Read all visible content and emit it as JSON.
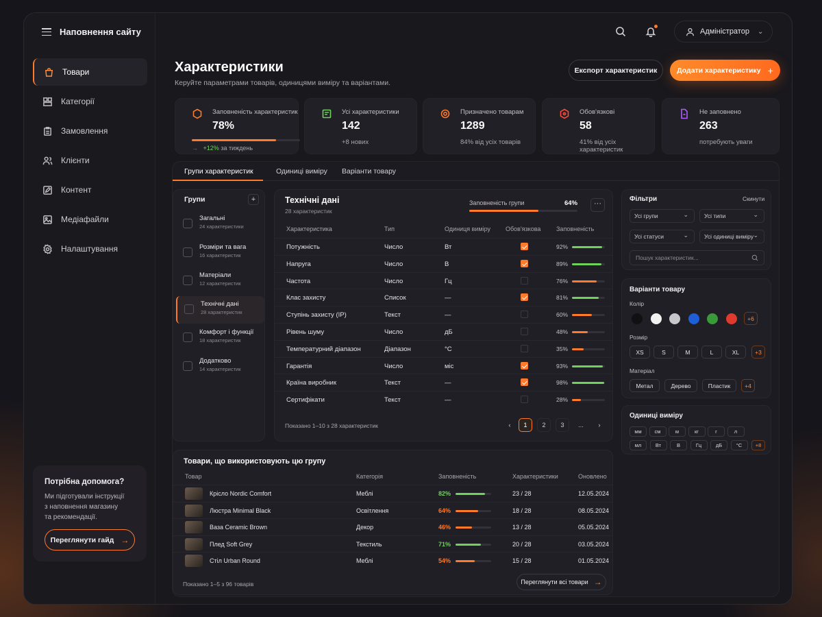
{
  "app": {
    "title": "Наповнення сайту"
  },
  "sidebar": {
    "items": [
      {
        "label": "Товари",
        "icon": "bag-icon",
        "active": true
      },
      {
        "label": "Категорії",
        "icon": "folder-icon"
      },
      {
        "label": "Замовлення",
        "icon": "clipboard-icon"
      },
      {
        "label": "Клієнти",
        "icon": "users-icon"
      },
      {
        "label": "Контент",
        "icon": "edit-icon"
      },
      {
        "label": "Медіафайли",
        "icon": "image-icon"
      },
      {
        "label": "Налаштування",
        "icon": "gear-icon"
      }
    ],
    "help": {
      "title": "Потрібна допомога?",
      "text_lines": [
        "Ми підготували інструкції",
        "з наповнення магазину",
        "та рекомендації."
      ],
      "button": "Переглянути гайд"
    }
  },
  "topbar": {
    "user": "Адміністратор"
  },
  "header": {
    "title": "Характеристики",
    "subtitle": "Керуйте параметрами товарів, одиницями виміру та варіантами.",
    "export_button": "Експорт характеристик",
    "add_button": "Додати характеристику"
  },
  "stats": [
    {
      "label": "Заповненість характеристик",
      "value": "78%",
      "progress": 0.78,
      "trend": "+12%",
      "trend_suffix": "за тиждень",
      "icon": "hexagon-icon",
      "color": "#ff7a2a"
    },
    {
      "label": "Усі характеристики",
      "value": "142",
      "note": "+8 нових",
      "icon": "list-icon",
      "color": "#6fd35a"
    },
    {
      "label": "Призначено товарам",
      "value": "1289",
      "note": "84% від усіх товарів",
      "icon": "gear-icon",
      "color": "#ff7a2a"
    },
    {
      "label": "Обов'язкові",
      "value": "58",
      "note": "41% від усіх характеристик",
      "icon": "shield-icon",
      "color": "#ff4a3a"
    },
    {
      "label": "Не заповнено",
      "value": "263",
      "note": "потребують уваги",
      "icon": "document-icon",
      "color": "#b05cff"
    }
  ],
  "tabs": [
    "Групи характеристик",
    "Одиниці виміру",
    "Варіанти товару"
  ],
  "groups": {
    "title": "Групи",
    "items": [
      {
        "name": "Загальні",
        "count": "24 характеристики"
      },
      {
        "name": "Розміри та вага",
        "count": "16 характеристик"
      },
      {
        "name": "Матеріали",
        "count": "12 характеристик"
      },
      {
        "name": "Технічні дані",
        "count": "28 характеристик",
        "active": true
      },
      {
        "name": "Комфорт і функції",
        "count": "18 характеристик"
      },
      {
        "name": "Додатково",
        "count": "14 характеристик"
      }
    ]
  },
  "group_table": {
    "title": "Технічні дані",
    "subtitle": "28 характеристик",
    "fill_label": "Заповненість групи",
    "fill_value": "64%",
    "fill": 0.64,
    "columns": [
      "Характеристика",
      "Тип",
      "Одиниця виміру",
      "Обов'язкова",
      "Заповненість"
    ],
    "rows": [
      {
        "name": "Потужність",
        "type": "Число",
        "unit": "Вт",
        "required": true,
        "fill": "92%",
        "pct": 92,
        "color": "#6fd35a"
      },
      {
        "name": "Напруга",
        "type": "Число",
        "unit": "В",
        "required": true,
        "fill": "89%",
        "pct": 89,
        "color": "#6fd35a"
      },
      {
        "name": "Частота",
        "type": "Число",
        "unit": "Гц",
        "required": false,
        "fill": "76%",
        "pct": 76,
        "color": "#ff7a2a"
      },
      {
        "name": "Клас захисту",
        "type": "Список",
        "unit": "—",
        "required": true,
        "fill": "81%",
        "pct": 81,
        "color": "#6fd35a"
      },
      {
        "name": "Ступінь захисту (IP)",
        "type": "Текст",
        "unit": "—",
        "required": false,
        "fill": "60%",
        "pct": 60,
        "color": "#ff7a2a"
      },
      {
        "name": "Рівень шуму",
        "type": "Число",
        "unit": "дБ",
        "required": false,
        "fill": "48%",
        "pct": 48,
        "color": "#ff7a2a"
      },
      {
        "name": "Температурний діапазон",
        "type": "Діапазон",
        "unit": "°С",
        "required": false,
        "fill": "35%",
        "pct": 35,
        "color": "#ff7a2a"
      },
      {
        "name": "Гарантія",
        "type": "Число",
        "unit": "міс",
        "required": true,
        "fill": "93%",
        "pct": 93,
        "color": "#6fd35a"
      },
      {
        "name": "Країна виробник",
        "type": "Текст",
        "unit": "—",
        "required": true,
        "fill": "98%",
        "pct": 98,
        "color": "#6fd35a"
      },
      {
        "name": "Сертифікати",
        "type": "Текст",
        "unit": "—",
        "required": false,
        "fill": "28%",
        "pct": 28,
        "color": "#ff7a2a"
      }
    ],
    "pagination_info": "Показано 1–10 з 28 характеристик",
    "pages": [
      "‹",
      "1",
      "2",
      "3",
      "...",
      "›"
    ]
  },
  "filters": {
    "title": "Фільтри",
    "reset": "Скинути",
    "selects": [
      "Усі групи",
      "Усі типи",
      "Усі статуси",
      "Усі одиниці виміру"
    ],
    "search_placeholder": "Пошук характеристик..."
  },
  "variants": {
    "title": "Варіанти товару",
    "color_label": "Колір",
    "colors": [
      "#111114",
      "#f2f2f2",
      "#c8c8cc",
      "#1e5fd8",
      "#3a9a3a",
      "#e03a2e"
    ],
    "colors_more": "+6",
    "size_label": "Розмір",
    "sizes": [
      "XS",
      "S",
      "M",
      "L",
      "XL"
    ],
    "sizes_more": "+3",
    "material_label": "Матеріал",
    "materials": [
      "Метал",
      "Дерево",
      "Пластик"
    ],
    "materials_more": "+4"
  },
  "units": {
    "title": "Одиниці виміру",
    "row1": [
      "мм",
      "см",
      "м",
      "кг",
      "г",
      "л"
    ],
    "row2": [
      "мл",
      "Вт",
      "В",
      "Гц",
      "дБ",
      "°С"
    ],
    "more": "+8"
  },
  "products": {
    "title": "Товари, що використовують цю групу",
    "columns": [
      "Товар",
      "Категорія",
      "Заповненість",
      "Характеристики",
      "Оновлено"
    ],
    "rows": [
      {
        "name": "Крісло Nordic Comfort",
        "category": "Меблі",
        "fill": "82%",
        "pct": 82,
        "color": "#6fd35a",
        "chars": "23 / 28",
        "updated": "12.05.2024"
      },
      {
        "name": "Люстра Minimal Black",
        "category": "Освітлення",
        "fill": "64%",
        "pct": 64,
        "color": "#ff7a2a",
        "chars": "18 / 28",
        "updated": "08.05.2024"
      },
      {
        "name": "Ваза Ceramic Brown",
        "category": "Декор",
        "fill": "46%",
        "pct": 46,
        "color": "#ff7a2a",
        "chars": "13 / 28",
        "updated": "05.05.2024"
      },
      {
        "name": "Плед Soft Grey",
        "category": "Текстиль",
        "fill": "71%",
        "pct": 71,
        "color": "#6fd35a",
        "chars": "20 / 28",
        "updated": "03.05.2024"
      },
      {
        "name": "Стіл Urban Round",
        "category": "Меблі",
        "fill": "54%",
        "pct": 54,
        "color": "#ff7a2a",
        "chars": "15 / 28",
        "updated": "01.05.2024"
      }
    ],
    "footer": "Показано 1–5 з 96 товарів",
    "view_all": "Переглянути всі товари"
  }
}
